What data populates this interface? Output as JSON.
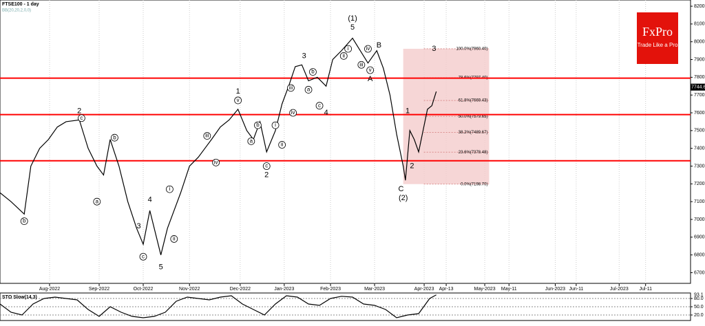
{
  "logo": {
    "name": "FxPro",
    "tagline": "Trade Like a Pro"
  },
  "chart_data": [
    {
      "type": "line",
      "title": "FTSE100 - 1 day",
      "subtitle": "BB(20,20,2,0,0)",
      "xlim": [
        0,
        313.4
      ],
      "ylim": [
        6640,
        8235
      ],
      "yticks": [
        6700,
        6800,
        6900,
        7000,
        7100,
        7200,
        7300,
        7400,
        7500,
        7600,
        7700,
        7800,
        7900,
        8000,
        8100,
        8200
      ],
      "xticks": [
        {
          "value": 22.5,
          "label": "Aug-2022"
        },
        {
          "value": 45,
          "label": "Sep-2022"
        },
        {
          "value": 65,
          "label": "Oct-2022"
        },
        {
          "value": 86,
          "label": "Nov-2022"
        },
        {
          "value": 109,
          "label": "Dec-2022"
        },
        {
          "value": 129,
          "label": "Jan-2023"
        },
        {
          "value": 150,
          "label": "Feb-2023"
        },
        {
          "value": 170,
          "label": "Mar-2023"
        },
        {
          "value": 192.5,
          "label": "Apr-2023"
        },
        {
          "value": 202.5,
          "label": "Apr-13"
        },
        {
          "value": 220,
          "label": "May-2023"
        },
        {
          "value": 231,
          "label": "May-11"
        },
        {
          "value": 252,
          "label": "Jun-2023"
        },
        {
          "value": 261.5,
          "label": "Jun-11"
        },
        {
          "value": 281,
          "label": "Jul-2023"
        },
        {
          "value": 293,
          "label": "Jul-11"
        }
      ],
      "grid": true,
      "series": [
        {
          "color": "#000000",
          "x": [
            0,
            5,
            11,
            14,
            18,
            22,
            26,
            30,
            36,
            40,
            44,
            47,
            50,
            54,
            58,
            62,
            65,
            68,
            73,
            76,
            79,
            82,
            86,
            90,
            93,
            96,
            100,
            104,
            108,
            112,
            115,
            118,
            121,
            125,
            128,
            131,
            134,
            137,
            140,
            144,
            148,
            151,
            155,
            160,
            163,
            167,
            171,
            174,
            177,
            180,
            183,
            184,
            186,
            188,
            190,
            192,
            194,
            196,
            198
          ],
          "values": [
            7150,
            7100,
            7030,
            7300,
            7400,
            7450,
            7520,
            7550,
            7560,
            7400,
            7300,
            7250,
            7450,
            7300,
            7100,
            6950,
            6860,
            7050,
            6800,
            6950,
            7050,
            7150,
            7300,
            7350,
            7400,
            7450,
            7520,
            7560,
            7620,
            7500,
            7450,
            7550,
            7380,
            7500,
            7650,
            7750,
            7860,
            7870,
            7780,
            7800,
            7750,
            7900,
            7950,
            8020,
            7960,
            7880,
            7950,
            7850,
            7700,
            7480,
            7300,
            7220,
            7500,
            7450,
            7380,
            7500,
            7620,
            7640,
            7720
          ]
        }
      ],
      "levels": [
        {
          "value": 7330,
          "color": "#ff0000"
        },
        {
          "value": 7590,
          "color": "#ff0000"
        },
        {
          "value": 7795,
          "color": "#ff0000"
        }
      ],
      "last_price": {
        "value": 7744.6,
        "label": "7744.60"
      },
      "fib": {
        "x": [
          183,
          222
        ],
        "color": "#f4cccc",
        "levels": [
          {
            "value": 7960.4,
            "label": "100.0%(7960.40)"
          },
          {
            "value": 7797.4,
            "label": "78.6%(7797.40)"
          },
          {
            "value": 7669.43,
            "label": "61.8%(7669.43)"
          },
          {
            "value": 7579.65,
            "label": "50.0%(7579.65)"
          },
          {
            "value": 7489.67,
            "label": "38.2%(7489.67)"
          },
          {
            "value": 7378.48,
            "label": "23.6%(7378.48)"
          },
          {
            "value": 7198.7,
            "label": "0.0%(7198.70)"
          }
        ]
      },
      "annotations": [
        {
          "text": "2",
          "x": 36,
          "y": 7610
        },
        {
          "text": "c",
          "x": 37,
          "y": 7570,
          "circled": true
        },
        {
          "text": "b",
          "x": 11,
          "y": 6990,
          "circled": true
        },
        {
          "text": "a",
          "x": 44,
          "y": 7100,
          "circled": true
        },
        {
          "text": "b",
          "x": 52,
          "y": 7460,
          "circled": true
        },
        {
          "text": "3",
          "x": 63,
          "y": 6960
        },
        {
          "text": "4",
          "x": 68,
          "y": 7110
        },
        {
          "text": "c",
          "x": 65,
          "y": 6790,
          "circled": true
        },
        {
          "text": "5",
          "x": 73,
          "y": 6730
        },
        {
          "text": "i",
          "x": 77,
          "y": 7170,
          "circled": true
        },
        {
          "text": "ii",
          "x": 79,
          "y": 6890,
          "circled": true
        },
        {
          "text": "iii",
          "x": 94,
          "y": 7470,
          "circled": true
        },
        {
          "text": "iv",
          "x": 98,
          "y": 7320,
          "circled": true
        },
        {
          "text": "1",
          "x": 108,
          "y": 7720
        },
        {
          "text": "v",
          "x": 108,
          "y": 7670,
          "circled": true
        },
        {
          "text": "a",
          "x": 114,
          "y": 7440,
          "circled": true
        },
        {
          "text": "b",
          "x": 117,
          "y": 7530,
          "circled": true
        },
        {
          "text": "c",
          "x": 121,
          "y": 7300,
          "circled": true
        },
        {
          "text": "2",
          "x": 121,
          "y": 7250
        },
        {
          "text": "i",
          "x": 125,
          "y": 7530,
          "circled": true
        },
        {
          "text": "ii",
          "x": 128,
          "y": 7420,
          "circled": true
        },
        {
          "text": "3",
          "x": 138,
          "y": 7920
        },
        {
          "text": "iii",
          "x": 132,
          "y": 7740,
          "circled": true
        },
        {
          "text": "iv",
          "x": 133,
          "y": 7600,
          "circled": true
        },
        {
          "text": "a",
          "x": 140,
          "y": 7730,
          "circled": true
        },
        {
          "text": "b",
          "x": 142,
          "y": 7830,
          "circled": true
        },
        {
          "text": "c",
          "x": 145,
          "y": 7640,
          "circled": true
        },
        {
          "text": "4",
          "x": 148,
          "y": 7600
        },
        {
          "text": "(1)",
          "x": 160,
          "y": 8130
        },
        {
          "text": "5",
          "x": 160,
          "y": 8080
        },
        {
          "text": "i",
          "x": 158,
          "y": 7960,
          "circled": true
        },
        {
          "text": "ii",
          "x": 156,
          "y": 7920,
          "circled": true
        },
        {
          "text": "iii",
          "x": 164,
          "y": 7870,
          "circled": true
        },
        {
          "text": "iv",
          "x": 167,
          "y": 7960,
          "circled": true
        },
        {
          "text": "v",
          "x": 168,
          "y": 7840,
          "circled": true
        },
        {
          "text": "A",
          "x": 168,
          "y": 7790
        },
        {
          "text": "B",
          "x": 172,
          "y": 7980
        },
        {
          "text": "C",
          "x": 182,
          "y": 7170
        },
        {
          "text": "(2)",
          "x": 183,
          "y": 7120
        },
        {
          "text": "1",
          "x": 185,
          "y": 7610
        },
        {
          "text": "2",
          "x": 187,
          "y": 7300
        },
        {
          "text": "3",
          "x": 197,
          "y": 7960
        }
      ]
    },
    {
      "type": "line",
      "title": "STO Slow(14,3)",
      "xlim": [
        0,
        313.4
      ],
      "ylim": [
        0,
        100
      ],
      "yticks": [
        {
          "value": 20,
          "label": "20.0"
        },
        {
          "value": 50,
          "label": "50.0"
        },
        {
          "value": 80,
          "label": "80.0"
        }
      ],
      "last_value": 93.1,
      "series": [
        {
          "color": "#000000",
          "x": [
            0,
            5,
            10,
            15,
            20,
            25,
            30,
            35,
            40,
            45,
            50,
            55,
            60,
            65,
            70,
            75,
            80,
            85,
            90,
            95,
            100,
            105,
            110,
            115,
            120,
            125,
            130,
            135,
            140,
            145,
            150,
            155,
            160,
            165,
            170,
            175,
            180,
            185,
            190,
            195,
            198
          ],
          "values": [
            60,
            30,
            20,
            60,
            80,
            85,
            80,
            75,
            40,
            15,
            50,
            30,
            15,
            10,
            15,
            30,
            70,
            85,
            80,
            75,
            85,
            90,
            60,
            40,
            20,
            60,
            90,
            85,
            60,
            55,
            80,
            88,
            85,
            60,
            55,
            40,
            10,
            20,
            25,
            80,
            93.1
          ]
        }
      ]
    }
  ]
}
